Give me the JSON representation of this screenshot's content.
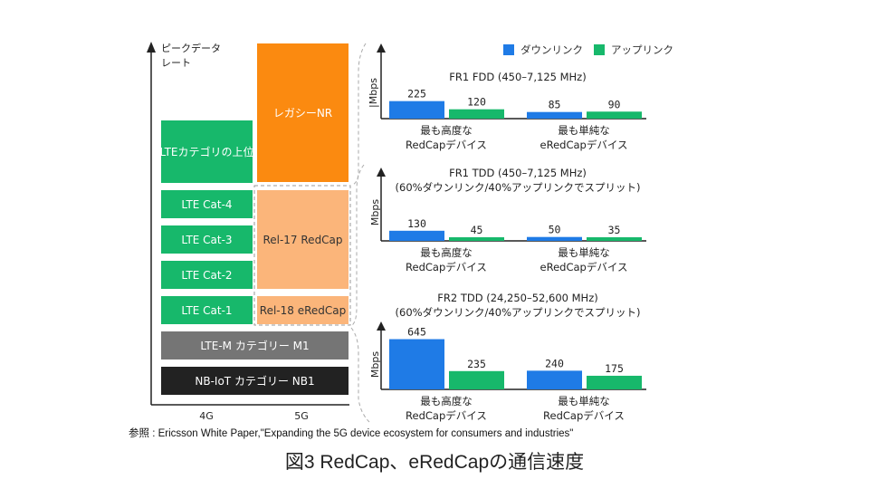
{
  "colors": {
    "downlink": "#1f7be6",
    "uplink": "#17b86b",
    "lte": "#17b86b",
    "legacy_nr": "#fb8a10",
    "redcap": "#fbb57a",
    "ltem": "#757575",
    "nbiot": "#222222"
  },
  "left_diagram": {
    "y_axis_label_line1": "ピークデータ",
    "y_axis_label_line2": "レート",
    "x_ticks": [
      "4G",
      "5G"
    ],
    "blocks": {
      "lte_upper": "LTEカテゴリの上位",
      "lte_cat4": "LTE Cat-4",
      "lte_cat3": "LTE Cat-3",
      "lte_cat2": "LTE Cat-2",
      "lte_cat1": "LTE Cat-1",
      "legacy_nr": "レガシーNR",
      "rel17": "Rel-17 RedCap",
      "rel18": "Rel-18 eRedCap",
      "ltem": "LTE-M カテゴリー M1",
      "nbiot": "NB-IoT カテゴリー NB1"
    }
  },
  "legend": {
    "downlink": "ダウンリンク",
    "uplink": "アップリンク"
  },
  "chart_data": [
    {
      "type": "bar",
      "title": "FR1 FDD (450–7,125 MHz)",
      "subtitle": "",
      "ylabel": "|Mbps",
      "categories": [
        "最も高度な\nRedCapデバイス",
        "最も単純な\neRedCapデバイス"
      ],
      "category_lines": [
        [
          "最も高度な",
          "RedCapデバイス"
        ],
        [
          "最も単純な",
          "eRedCapデバイス"
        ]
      ],
      "series": [
        {
          "name": "ダウンリンク",
          "values": [
            225,
            85
          ]
        },
        {
          "name": "アップリンク",
          "values": [
            120,
            90
          ]
        }
      ],
      "legend": "top-right"
    },
    {
      "type": "bar",
      "title": "FR1 TDD (450–7,125 MHz)",
      "subtitle": "(60%ダウンリンク/40%アップリンクでスプリット)",
      "ylabel": "Mbps",
      "categories": [
        "最も高度な\nRedCapデバイス",
        "最も単純な\neRedCapデバイス"
      ],
      "category_lines": [
        [
          "最も高度な",
          "RedCapデバイス"
        ],
        [
          "最も単純な",
          "eRedCapデバイス"
        ]
      ],
      "series": [
        {
          "name": "ダウンリンク",
          "values": [
            130,
            50
          ]
        },
        {
          "name": "アップリンク",
          "values": [
            45,
            35
          ]
        }
      ]
    },
    {
      "type": "bar",
      "title": "FR2 TDD (24,250–52,600 MHz)",
      "subtitle": "(60%ダウンリンク/40%アップリンクでスプリット)",
      "ylabel": "Mbps",
      "categories": [
        "最も高度な\nRedCapデバイス",
        "最も単純な\nRedCapデバイス"
      ],
      "category_lines": [
        [
          "最も高度な",
          "RedCapデバイス"
        ],
        [
          "最も単純な",
          "RedCapデバイス"
        ]
      ],
      "series": [
        {
          "name": "ダウンリンク",
          "values": [
            645,
            240
          ]
        },
        {
          "name": "アップリンク",
          "values": [
            235,
            175
          ]
        }
      ]
    }
  ],
  "source": "参照 : Ericsson White Paper,\"Expanding the 5G device ecosystem for consumers and industries\"",
  "figure_title": "図3  RedCap、eRedCapの通信速度"
}
